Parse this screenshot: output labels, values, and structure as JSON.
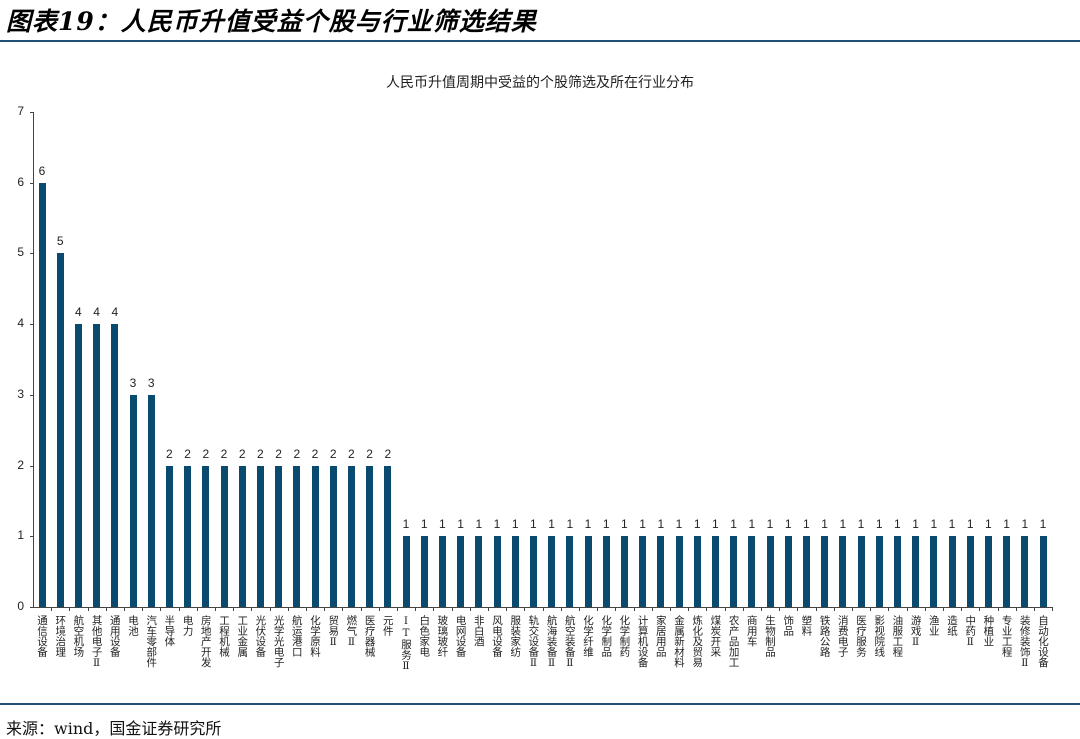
{
  "figure": {
    "title": "图表19：人民币升值受益个股与行业筛选结果",
    "source": "来源：wind，国金证券研究所"
  },
  "colors": {
    "bar": "#0b4a6f",
    "rule": "#1f4e79"
  },
  "chart_data": {
    "type": "bar",
    "title": "人民币升值周期中受益的个股筛选及所在行业分布",
    "xlabel": "",
    "ylabel": "",
    "ylim": [
      0,
      7
    ],
    "yticks": [
      0,
      1,
      2,
      3,
      4,
      5,
      6,
      7
    ],
    "grid": false,
    "legend": null,
    "data_labels": true,
    "categories": [
      "通信设备",
      "环境治理",
      "航空机场",
      "其他电子Ⅱ",
      "通用设备",
      "电池",
      "汽车零部件",
      "半导体",
      "电力",
      "房地产开发",
      "工程机械",
      "工业金属",
      "光伏设备",
      "光学光电子",
      "航运港口",
      "化学原料",
      "贸易Ⅱ",
      "燃气Ⅱ",
      "医疗器械",
      "元件",
      "IT服务Ⅱ",
      "白色家电",
      "玻璃玻纤",
      "电网设备",
      "非白酒",
      "风电设备",
      "服装家纺",
      "轨交设备Ⅱ",
      "航海装备Ⅱ",
      "航空装备Ⅱ",
      "化学纤维",
      "化学制品",
      "化学制药",
      "计算机设备",
      "家居用品",
      "金属新材料",
      "炼化及贸易",
      "煤炭开采",
      "农产品加工",
      "商用车",
      "生物制品",
      "饰品",
      "塑料",
      "铁路公路",
      "消费电子",
      "医疗服务",
      "影视院线",
      "油服工程",
      "游戏Ⅱ",
      "渔业",
      "造纸",
      "中药Ⅱ",
      "种植业",
      "专业工程",
      "装修装饰Ⅱ",
      "自动化设备"
    ],
    "values": [
      6,
      5,
      4,
      4,
      4,
      3,
      3,
      2,
      2,
      2,
      2,
      2,
      2,
      2,
      2,
      2,
      2,
      2,
      2,
      2,
      1,
      1,
      1,
      1,
      1,
      1,
      1,
      1,
      1,
      1,
      1,
      1,
      1,
      1,
      1,
      1,
      1,
      1,
      1,
      1,
      1,
      1,
      1,
      1,
      1,
      1,
      1,
      1,
      1,
      1,
      1,
      1,
      1,
      1,
      1,
      1
    ]
  }
}
